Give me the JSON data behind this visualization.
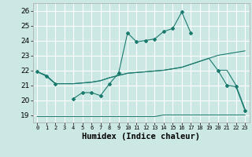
{
  "xlabel": "Humidex (Indice chaleur)",
  "bg_color": "#cce8e4",
  "grid_color": "#b0d8d2",
  "line_color": "#1a7a6e",
  "xlim": [
    -0.5,
    23.5
  ],
  "ylim": [
    18.5,
    26.5
  ],
  "yticks": [
    19,
    20,
    21,
    22,
    23,
    24,
    25,
    26
  ],
  "xticks": [
    0,
    1,
    2,
    3,
    4,
    5,
    6,
    7,
    8,
    9,
    10,
    11,
    12,
    13,
    14,
    15,
    16,
    17,
    18,
    19,
    20,
    21,
    22,
    23
  ],
  "line1_x": [
    0,
    1,
    2,
    3,
    4,
    5,
    6,
    7,
    8,
    9,
    10,
    11,
    12,
    13,
    14,
    15,
    16,
    17,
    18,
    19,
    20,
    21,
    22,
    23
  ],
  "line1_y": [
    21.9,
    21.6,
    21.1,
    null,
    20.1,
    20.5,
    20.5,
    20.3,
    21.1,
    21.8,
    24.5,
    23.9,
    24.0,
    24.1,
    24.6,
    24.8,
    25.9,
    24.5,
    null,
    null,
    22.0,
    21.0,
    20.9,
    19.3
  ],
  "line2_x": [
    0,
    1,
    2,
    3,
    4,
    5,
    6,
    7,
    8,
    9,
    10,
    11,
    12,
    13,
    14,
    15,
    16,
    17,
    18,
    19,
    20,
    21,
    22,
    23
  ],
  "line2_y": [
    21.9,
    21.65,
    21.1,
    21.1,
    21.1,
    21.15,
    21.2,
    21.3,
    21.5,
    21.65,
    21.8,
    21.85,
    21.9,
    21.95,
    22.0,
    22.1,
    22.2,
    22.4,
    22.6,
    22.8,
    23.0,
    23.1,
    23.2,
    23.3
  ],
  "line3_x": [
    0,
    1,
    2,
    3,
    4,
    5,
    6,
    7,
    8,
    9,
    10,
    11,
    12,
    13,
    14,
    15,
    16,
    17,
    18,
    19,
    20,
    21,
    22,
    23
  ],
  "line3_y": [
    21.9,
    21.65,
    21.1,
    21.1,
    21.1,
    21.15,
    21.2,
    21.3,
    21.5,
    21.65,
    21.8,
    21.85,
    21.9,
    21.95,
    22.0,
    22.1,
    22.2,
    22.4,
    22.6,
    22.8,
    22.0,
    22.0,
    21.0,
    19.4
  ],
  "line4_x": [
    0,
    1,
    2,
    3,
    4,
    5,
    6,
    7,
    8,
    9,
    10,
    11,
    12,
    13,
    14,
    15,
    16,
    17,
    18,
    19,
    20,
    21,
    22,
    23
  ],
  "line4_y": [
    18.9,
    18.9,
    18.9,
    18.9,
    18.9,
    18.9,
    18.9,
    18.9,
    18.9,
    18.9,
    18.9,
    18.9,
    18.9,
    18.9,
    19.0,
    19.0,
    19.0,
    19.0,
    19.0,
    19.0,
    19.0,
    19.0,
    19.0,
    19.0
  ]
}
